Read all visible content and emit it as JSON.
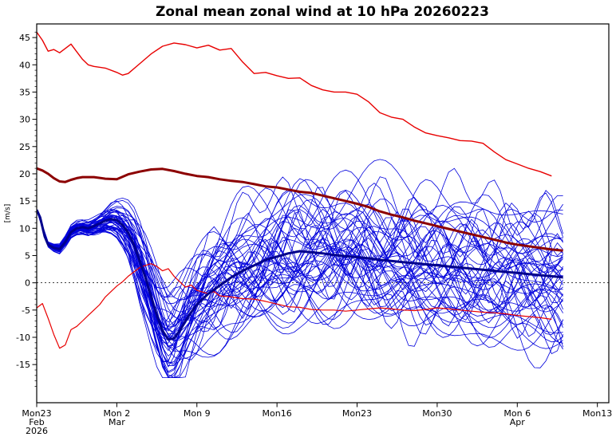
{
  "chart_data": {
    "type": "line",
    "title": "Zonal mean zonal wind at 10 hPa 20260223",
    "ylabel": "[m/s]",
    "ylim": [
      -22,
      47.5
    ],
    "xlim": [
      0,
      50
    ],
    "grid": false,
    "zero_line": 0,
    "y_ticks": [
      -15,
      -10,
      -5,
      0,
      5,
      10,
      15,
      20,
      25,
      30,
      35,
      40,
      45
    ],
    "x_ticks": [
      {
        "day": 0,
        "lines": [
          "Mon23",
          "Feb",
          "2026"
        ]
      },
      {
        "day": 7,
        "lines": [
          "Mon 2",
          "Mar"
        ]
      },
      {
        "day": 14,
        "lines": [
          "Mon 9"
        ]
      },
      {
        "day": 21,
        "lines": [
          "Mon16"
        ]
      },
      {
        "day": 28,
        "lines": [
          "Mon23"
        ]
      },
      {
        "day": 35,
        "lines": [
          "Mon30"
        ]
      },
      {
        "day": 42,
        "lines": [
          "Mon 6",
          "Apr"
        ]
      },
      {
        "day": 49,
        "lines": [
          "Mon13"
        ]
      }
    ],
    "series": [
      {
        "name": "upper-red-line",
        "legend": "upper red thin line",
        "color": "#e80000",
        "width": 1.4,
        "points": [
          [
            0,
            46
          ],
          [
            0.5,
            44.5
          ],
          [
            1,
            42.5
          ],
          [
            1.5,
            42.8
          ],
          [
            2,
            42.2
          ],
          [
            2.5,
            43
          ],
          [
            3,
            43.8
          ],
          [
            3.5,
            42.4
          ],
          [
            4,
            41
          ],
          [
            4.5,
            40
          ],
          [
            5,
            39.7
          ],
          [
            6,
            39.4
          ],
          [
            7,
            38.6
          ],
          [
            7.5,
            38.1
          ],
          [
            8,
            38.4
          ],
          [
            9,
            40.2
          ],
          [
            10,
            42
          ],
          [
            11,
            43.4
          ],
          [
            12,
            44
          ],
          [
            13,
            43.7
          ],
          [
            14,
            43.1
          ],
          [
            15,
            43.6
          ],
          [
            16,
            42.7
          ],
          [
            17,
            43
          ],
          [
            18,
            40.5
          ],
          [
            19,
            38.4
          ],
          [
            20,
            38.6
          ],
          [
            21,
            38
          ],
          [
            22,
            37.5
          ],
          [
            23,
            37.6
          ],
          [
            24,
            36.2
          ],
          [
            25,
            35.4
          ],
          [
            26,
            35
          ],
          [
            27,
            35
          ],
          [
            28,
            34.6
          ],
          [
            29,
            33.2
          ],
          [
            30,
            31.2
          ],
          [
            31,
            30.4
          ],
          [
            32,
            30
          ],
          [
            33,
            28.6
          ],
          [
            34,
            27.5
          ],
          [
            35,
            27
          ],
          [
            36,
            26.6
          ],
          [
            37,
            26.1
          ],
          [
            38,
            26
          ],
          [
            39,
            25.6
          ],
          [
            40,
            24
          ],
          [
            41,
            22.6
          ],
          [
            42,
            21.8
          ],
          [
            43,
            21
          ],
          [
            44,
            20.4
          ],
          [
            45,
            19.6
          ]
        ]
      },
      {
        "name": "lower-red-line",
        "legend": "lower red thin line",
        "color": "#e80000",
        "width": 1.2,
        "points": [
          [
            0,
            -4.6
          ],
          [
            0.5,
            -3.8
          ],
          [
            1,
            -6.5
          ],
          [
            1.5,
            -9.5
          ],
          [
            2,
            -12
          ],
          [
            2.5,
            -11.4
          ],
          [
            3,
            -8.6
          ],
          [
            3.5,
            -8
          ],
          [
            4,
            -7
          ],
          [
            4.5,
            -6
          ],
          [
            5,
            -5
          ],
          [
            5.5,
            -4
          ],
          [
            6,
            -2.6
          ],
          [
            6.5,
            -1.6
          ],
          [
            7,
            -0.6
          ],
          [
            7.5,
            0.2
          ],
          [
            8,
            1.2
          ],
          [
            8.5,
            2
          ],
          [
            9,
            2.8
          ],
          [
            9.5,
            3.2
          ],
          [
            10,
            3.5
          ],
          [
            10.5,
            3
          ],
          [
            11,
            2.2
          ],
          [
            11.5,
            2.6
          ],
          [
            12,
            1.2
          ],
          [
            12.5,
            0.2
          ],
          [
            13,
            -0.8
          ],
          [
            13.5,
            -0.4
          ],
          [
            14,
            -1.4
          ],
          [
            15,
            -2
          ],
          [
            15.5,
            -1.6
          ],
          [
            16,
            -2.4
          ],
          [
            17,
            -2.6
          ],
          [
            18,
            -2.9
          ],
          [
            19,
            -3
          ],
          [
            20,
            -3.4
          ],
          [
            21,
            -3.9
          ],
          [
            22,
            -4.4
          ],
          [
            23,
            -4.5
          ],
          [
            24,
            -4.9
          ],
          [
            25,
            -5
          ],
          [
            26,
            -5
          ],
          [
            27,
            -5.2
          ],
          [
            28,
            -5
          ],
          [
            29,
            -4.8
          ],
          [
            30,
            -4.6
          ],
          [
            31,
            -4.8
          ],
          [
            32,
            -5
          ],
          [
            33,
            -5.1
          ],
          [
            34,
            -4.9
          ],
          [
            35,
            -4.6
          ],
          [
            36,
            -4.8
          ],
          [
            37,
            -5
          ],
          [
            38,
            -5.2
          ],
          [
            39,
            -5.4
          ],
          [
            40,
            -5.5
          ],
          [
            41,
            -5.7
          ],
          [
            42,
            -6
          ],
          [
            43,
            -6.2
          ],
          [
            44,
            -6.4
          ],
          [
            45,
            -6.7
          ]
        ]
      },
      {
        "name": "ensemble-mean-thick-blue",
        "legend": "ensemble mean",
        "color": "#00008c",
        "width": 3,
        "points": [
          [
            0,
            13.4
          ],
          [
            0.3,
            12
          ],
          [
            0.7,
            8.5
          ],
          [
            1,
            7
          ],
          [
            1.5,
            6.4
          ],
          [
            2,
            6.2
          ],
          [
            2.5,
            7.5
          ],
          [
            3,
            9.3
          ],
          [
            3.5,
            10
          ],
          [
            4,
            10.2
          ],
          [
            4.5,
            10
          ],
          [
            5,
            10.4
          ],
          [
            5.5,
            10.9
          ],
          [
            6,
            11.4
          ],
          [
            6.5,
            11.7
          ],
          [
            7,
            11.5
          ],
          [
            7.5,
            10.6
          ],
          [
            8,
            9.2
          ],
          [
            8.5,
            7
          ],
          [
            9,
            4
          ],
          [
            9.5,
            1
          ],
          [
            10,
            -2.5
          ],
          [
            10.5,
            -6
          ],
          [
            11,
            -8.8
          ],
          [
            11.5,
            -10.4
          ],
          [
            12,
            -10.2
          ],
          [
            12.5,
            -8.8
          ],
          [
            13,
            -7
          ],
          [
            13.5,
            -5.4
          ],
          [
            14,
            -4
          ],
          [
            14.5,
            -3
          ],
          [
            15,
            -2
          ],
          [
            16,
            -0.5
          ],
          [
            17,
            1
          ],
          [
            18,
            2.2
          ],
          [
            19,
            3.2
          ],
          [
            20,
            4.2
          ],
          [
            21,
            4.8
          ],
          [
            22,
            5.4
          ],
          [
            23,
            5.8
          ],
          [
            24,
            5.6
          ],
          [
            25,
            5.4
          ],
          [
            26,
            5.1
          ],
          [
            27,
            4.9
          ],
          [
            28,
            4.7
          ],
          [
            29,
            4.5
          ],
          [
            30,
            4.2
          ],
          [
            31,
            4
          ],
          [
            32,
            3.8
          ],
          [
            33,
            3.6
          ],
          [
            34,
            3.4
          ],
          [
            35,
            3.2
          ],
          [
            36,
            3
          ],
          [
            37,
            2.8
          ],
          [
            38,
            2.6
          ],
          [
            39,
            2.4
          ],
          [
            40,
            2.2
          ],
          [
            41,
            2
          ],
          [
            42,
            1.8
          ],
          [
            43,
            1.6
          ],
          [
            44,
            1.4
          ],
          [
            45,
            1.2
          ],
          [
            46,
            1
          ]
        ]
      },
      {
        "name": "control-thick-dark-red",
        "legend": "thick dark red line",
        "color": "#8c0000",
        "width": 3,
        "points": [
          [
            0,
            21
          ],
          [
            0.5,
            20.6
          ],
          [
            1,
            20
          ],
          [
            1.5,
            19.2
          ],
          [
            2,
            18.6
          ],
          [
            2.5,
            18.5
          ],
          [
            3,
            18.9
          ],
          [
            3.5,
            19.2
          ],
          [
            4,
            19.4
          ],
          [
            5,
            19.4
          ],
          [
            6,
            19.1
          ],
          [
            7,
            19
          ],
          [
            8,
            19.9
          ],
          [
            9,
            20.4
          ],
          [
            10,
            20.8
          ],
          [
            11,
            20.9
          ],
          [
            12,
            20.5
          ],
          [
            13,
            20
          ],
          [
            14,
            19.6
          ],
          [
            15,
            19.4
          ],
          [
            16,
            19
          ],
          [
            17,
            18.7
          ],
          [
            18,
            18.5
          ],
          [
            19,
            18.1
          ],
          [
            20,
            17.7
          ],
          [
            21,
            17.5
          ],
          [
            22,
            17.1
          ],
          [
            23,
            16.7
          ],
          [
            24,
            16.5
          ],
          [
            25,
            16
          ],
          [
            26,
            15.5
          ],
          [
            27,
            15
          ],
          [
            28,
            14.5
          ],
          [
            29,
            13.9
          ],
          [
            30,
            13.1
          ],
          [
            31,
            12.5
          ],
          [
            32,
            12
          ],
          [
            33,
            11.4
          ],
          [
            34,
            10.9
          ],
          [
            35,
            10.4
          ],
          [
            36,
            9.9
          ],
          [
            37,
            9.4
          ],
          [
            38,
            8.9
          ],
          [
            39,
            8.4
          ],
          [
            40,
            7.9
          ],
          [
            41,
            7.4
          ],
          [
            42,
            7
          ],
          [
            43,
            6.7
          ],
          [
            44,
            6.4
          ],
          [
            45,
            6.1
          ],
          [
            46,
            5.9
          ]
        ]
      }
    ],
    "ensemble": {
      "name": "ensemble-members",
      "color": "#0000dc",
      "width": 0.8,
      "count": 50,
      "seed": 20260223,
      "x_step": 0.5,
      "x_end": 46,
      "clamp": [
        -17.4,
        23.8
      ],
      "mean_ref": "ensemble-mean-thick-blue",
      "spread": [
        [
          0,
          0.05
        ],
        [
          1,
          0.4
        ],
        [
          2,
          0.8
        ],
        [
          3,
          1.1
        ],
        [
          4,
          1.3
        ],
        [
          5,
          1.6
        ],
        [
          6,
          2
        ],
        [
          7,
          2.8
        ],
        [
          8,
          4
        ],
        [
          9,
          5.5
        ],
        [
          10,
          6.5
        ],
        [
          11,
          7.5
        ],
        [
          12,
          8
        ],
        [
          13,
          8.5
        ],
        [
          14,
          9
        ],
        [
          16,
          9.5
        ],
        [
          18,
          10
        ],
        [
          20,
          10.2
        ],
        [
          24,
          10.2
        ],
        [
          28,
          10.2
        ],
        [
          32,
          10
        ],
        [
          36,
          10
        ],
        [
          40,
          10.3
        ],
        [
          44,
          10.3
        ],
        [
          46,
          10.3
        ]
      ]
    }
  }
}
